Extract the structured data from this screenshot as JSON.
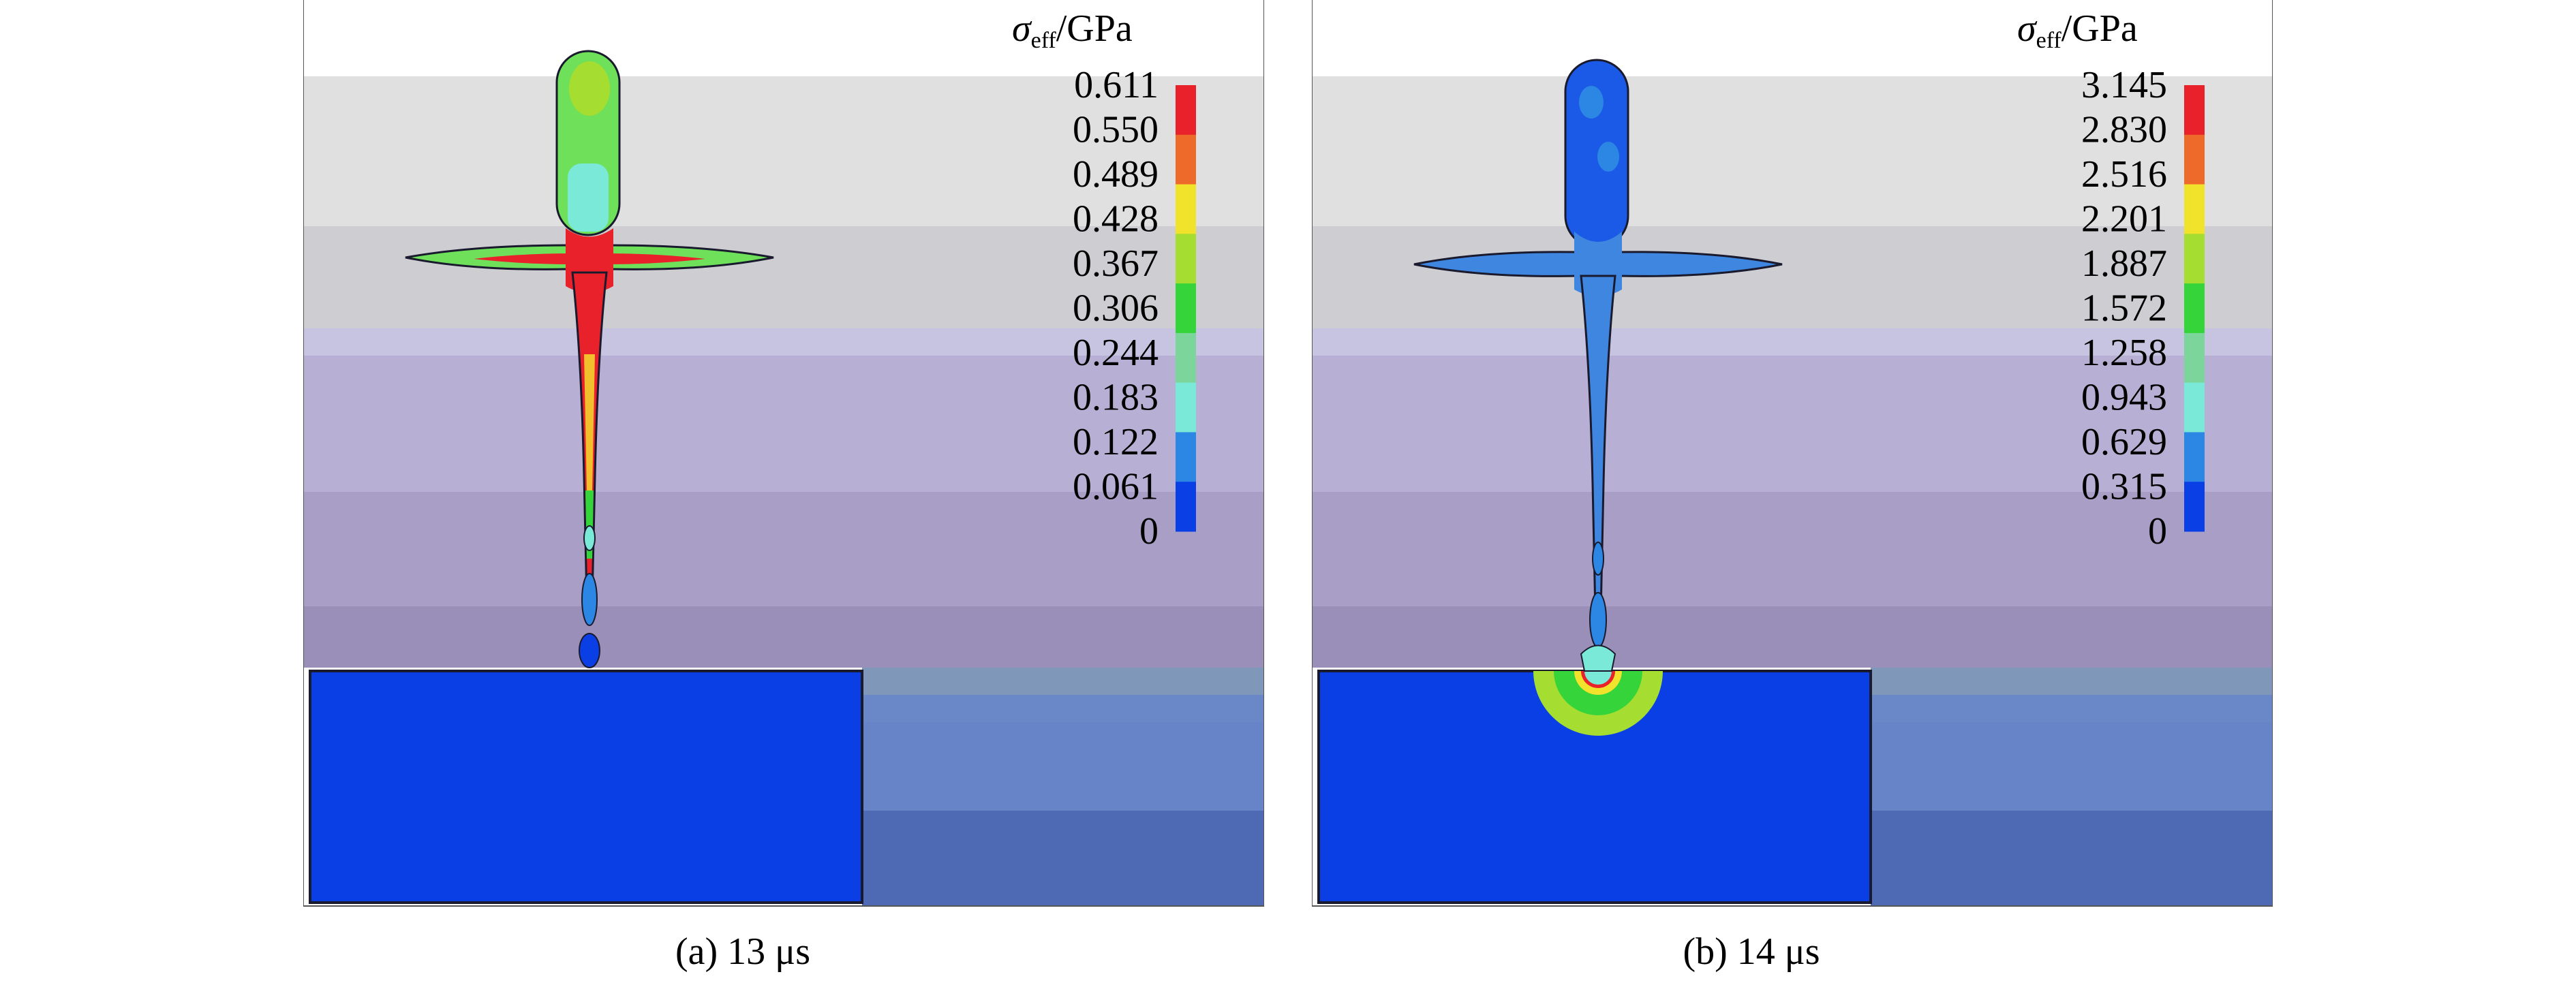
{
  "panels": [
    {
      "caption": "(a) 13 μs",
      "colorbar": {
        "title_symbol": "σ",
        "title_sub": "eff",
        "title_unit": "/GPa",
        "ticks": [
          "0.611",
          "0.550",
          "0.489",
          "0.428",
          "0.367",
          "0.306",
          "0.244",
          "0.183",
          "0.122",
          "0.061",
          "0"
        ]
      }
    },
    {
      "caption": "(b) 14 μs",
      "colorbar": {
        "title_symbol": "σ",
        "title_sub": "eff",
        "title_unit": "/GPa",
        "ticks": [
          "3.145",
          "2.830",
          "2.516",
          "2.201",
          "1.887",
          "1.572",
          "1.258",
          "0.943",
          "0.629",
          "0.315",
          "0"
        ]
      }
    }
  ],
  "colors": {
    "scale": [
      "#e8212b",
      "#ee6a2a",
      "#f1e22c",
      "#a6dd31",
      "#35d43a",
      "#7cd59a",
      "#7be9d8",
      "#2b86e4",
      "#0b3fe6"
    ],
    "target": "#0b3fe6",
    "outline": "#1a1a2e"
  }
}
